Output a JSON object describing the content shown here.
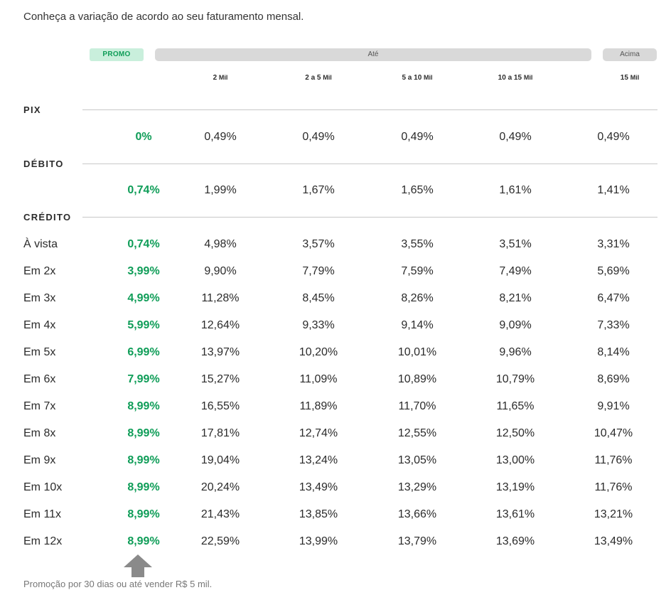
{
  "intro": "Conheça a variação de acordo ao seu faturamento mensal.",
  "header": {
    "promo": "PROMO",
    "ate": "Até",
    "acima": "Acima",
    "columns": [
      {
        "main": "2",
        "unit": "Mil"
      },
      {
        "main": "2 a 5",
        "unit": "Mil"
      },
      {
        "main": "5 a 10",
        "unit": "Mil"
      },
      {
        "main": "10 a 15",
        "unit": "Mil"
      },
      {
        "main": "15",
        "unit": "Mil"
      }
    ]
  },
  "sections": {
    "pix": "PIX",
    "debito": "DÉBITO",
    "credito": "CRÉDITO"
  },
  "rows": [
    {
      "label": "",
      "values": [
        "0%",
        "0,49%",
        "0,49%",
        "0,49%",
        "0,49%",
        "0,49%"
      ]
    },
    {
      "label": "",
      "values": [
        "0,74%",
        "1,99%",
        "1,67%",
        "1,65%",
        "1,61%",
        "1,41%"
      ]
    },
    {
      "label": "À vista",
      "values": [
        "0,74%",
        "4,98%",
        "3,57%",
        "3,55%",
        "3,51%",
        "3,31%"
      ]
    },
    {
      "label": "Em 2x",
      "values": [
        "3,99%",
        "9,90%",
        "7,79%",
        "7,59%",
        "7,49%",
        "5,69%"
      ]
    },
    {
      "label": "Em 3x",
      "values": [
        "4,99%",
        "11,28%",
        "8,45%",
        "8,26%",
        "8,21%",
        "6,47%"
      ]
    },
    {
      "label": "Em 4x",
      "values": [
        "5,99%",
        "12,64%",
        "9,33%",
        "9,14%",
        "9,09%",
        "7,33%"
      ]
    },
    {
      "label": "Em 5x",
      "values": [
        "6,99%",
        "13,97%",
        "10,20%",
        "10,01%",
        "9,96%",
        "8,14%"
      ]
    },
    {
      "label": "Em 6x",
      "values": [
        "7,99%",
        "15,27%",
        "11,09%",
        "10,89%",
        "10,79%",
        "8,69%"
      ]
    },
    {
      "label": "Em 7x",
      "values": [
        "8,99%",
        "16,55%",
        "11,89%",
        "11,70%",
        "11,65%",
        "9,91%"
      ]
    },
    {
      "label": "Em 8x",
      "values": [
        "8,99%",
        "17,81%",
        "12,74%",
        "12,55%",
        "12,50%",
        "10,47%"
      ]
    },
    {
      "label": "Em 9x",
      "values": [
        "8,99%",
        "19,04%",
        "13,24%",
        "13,05%",
        "13,00%",
        "11,76%"
      ]
    },
    {
      "label": "Em 10x",
      "values": [
        "8,99%",
        "20,24%",
        "13,49%",
        "13,29%",
        "13,19%",
        "11,76%"
      ]
    },
    {
      "label": "Em 11x",
      "values": [
        "8,99%",
        "21,43%",
        "13,85%",
        "13,66%",
        "13,61%",
        "13,21%"
      ]
    },
    {
      "label": "Em 12x",
      "values": [
        "8,99%",
        "22,59%",
        "13,99%",
        "13,79%",
        "13,69%",
        "13,49%"
      ]
    }
  ],
  "footnote": "Promoção por 30 dias ou até vender R$ 5 mil.",
  "colors": {
    "promo_green": "#0f9d58",
    "promo_bg": "#c9efdc",
    "pill_gray": "#d9d9d9",
    "arrow_gray": "#8a8a8a"
  },
  "icons": {
    "arrow": "arrow-up-icon"
  }
}
